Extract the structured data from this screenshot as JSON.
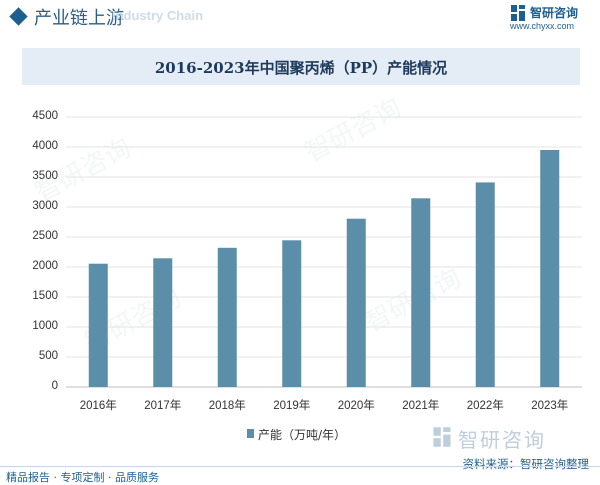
{
  "header": {
    "title": "产业链上游",
    "shadow_text": "Industry Chain"
  },
  "logo": {
    "name": "智研咨询",
    "url": "www.chyxx.com"
  },
  "watermark_brand": "智研咨询",
  "legend": {
    "label": "产能（万吨/年）",
    "color": "#5b8ea8"
  },
  "source": "资料来源：智研咨询整理",
  "footer": {
    "tagline": "精品报告 · 专项定制 · 品质服务"
  },
  "colors": {
    "brand": "#1f5f8f",
    "bar": "#5b8ea8",
    "title_band": "#e4ecf5"
  },
  "chart_data": {
    "type": "bar",
    "title": "2016-2023年中国聚丙烯（PP）产能情况",
    "xlabel": "",
    "ylabel": "",
    "categories": [
      "2016年",
      "2017年",
      "2018年",
      "2019年",
      "2020年",
      "2021年",
      "2022年",
      "2023年"
    ],
    "series": [
      {
        "name": "产能（万吨/年）",
        "values": [
          2055,
          2145,
          2320,
          2445,
          2805,
          3145,
          3410,
          3950
        ]
      }
    ],
    "ylim": [
      0,
      4500
    ],
    "yticks": [
      0,
      500,
      1000,
      1500,
      2000,
      2500,
      3000,
      3500,
      4000,
      4500
    ],
    "grid": true,
    "legend_position": "bottom"
  }
}
